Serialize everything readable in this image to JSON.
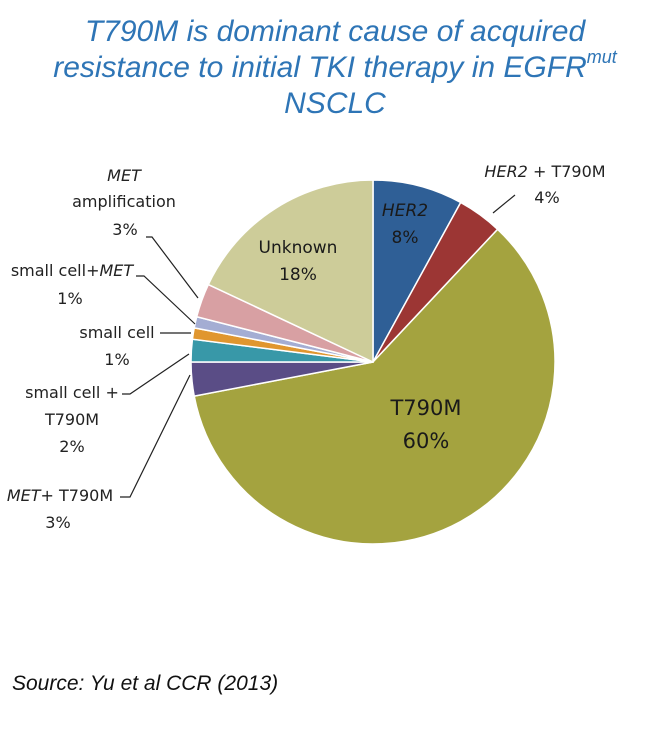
{
  "title": {
    "line1": "T790M is dominant cause of acquired",
    "line2_main": "resistance to initial TKI therapy in EGFR",
    "line2_sup": "mut",
    "line3": "NSCLC"
  },
  "source": "Source: Yu et al CCR (2013)",
  "chart_data": {
    "type": "pie",
    "title": "T790M is dominant cause of acquired resistance to initial TKI therapy in EGFRmut NSCLC",
    "slices": [
      {
        "id": "her2",
        "name": "HER2",
        "value": 8,
        "color": "#2f5f96",
        "label_name": "HER2",
        "label_pct": "8%"
      },
      {
        "id": "her2t",
        "name": "HER2 + T790M",
        "value": 4,
        "color": "#9c3634",
        "label_name_it": "HER2",
        "label_name_rest": " + T790M",
        "label_pct": "4%"
      },
      {
        "id": "t790m",
        "name": "T790M",
        "value": 60,
        "color": "#a4a33f",
        "label_name": "T790M",
        "label_pct": "60%"
      },
      {
        "id": "mett",
        "name": "MET+ T790M",
        "value": 3,
        "color": "#5a4d86",
        "label_name_it": "MET",
        "label_name_rest": "+ T790M",
        "label_pct": "3%"
      },
      {
        "id": "sct",
        "name": "small cell + T790M",
        "value": 2,
        "color": "#3898a8",
        "label_line1": "small cell +",
        "label_line2": "T790M",
        "label_pct": "2%"
      },
      {
        "id": "sc",
        "name": "small cell",
        "value": 1,
        "color": "#e0962f",
        "label_name": "small cell",
        "label_pct": "1%"
      },
      {
        "id": "scmet",
        "name": "small cell+MET",
        "value": 1,
        "color": "#a4add3",
        "label_name_plain": "small cell+",
        "label_name_it": "MET",
        "label_pct": "1%"
      },
      {
        "id": "met",
        "name": "MET amplification",
        "value": 3,
        "color": "#d8a0a3",
        "label_line1_it": "MET",
        "label_line2": "amplification",
        "label_pct": "3%"
      },
      {
        "id": "unk",
        "name": "Unknown",
        "value": 18,
        "color": "#cdcc99",
        "label_name": "Unknown",
        "label_pct": "18%"
      }
    ]
  }
}
